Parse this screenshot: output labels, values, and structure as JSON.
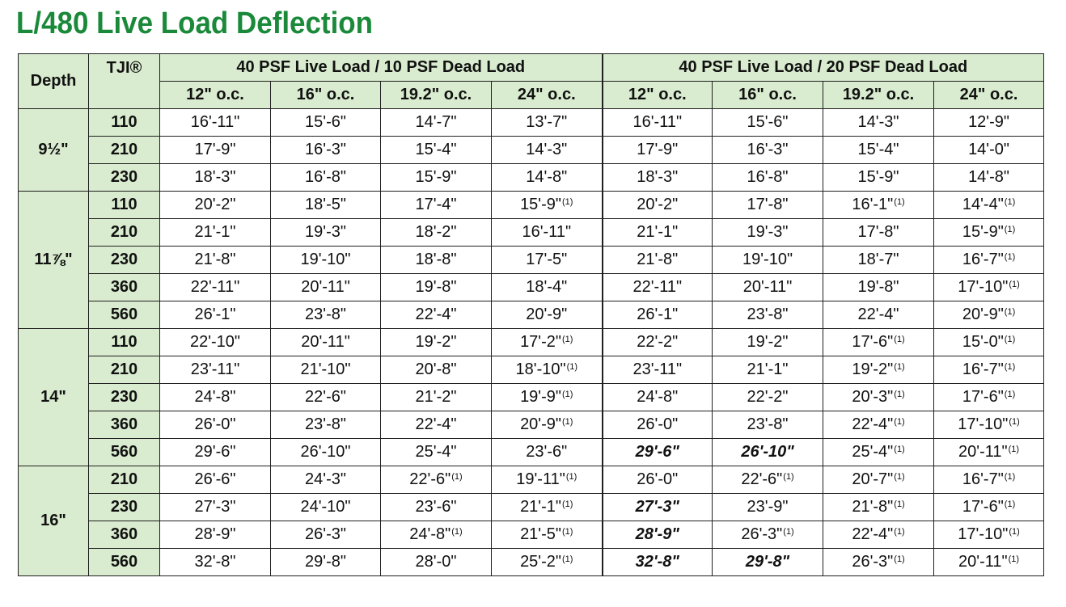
{
  "title": "L/480 Live Load Deflection",
  "header": {
    "depth": "Depth",
    "tji": "TJI®",
    "group1": "40 PSF Live Load / 10 PSF Dead Load",
    "group2": "40 PSF Live Load / 20 PSF Dead Load",
    "spacings": [
      "12\" o.c.",
      "16\" o.c.",
      "19.2\" o.c.",
      "24\" o.c.",
      "12\" o.c.",
      "16\" o.c.",
      "19.2\" o.c.",
      "24\" o.c."
    ]
  },
  "footnote_mark": "(1)",
  "groups": [
    {
      "depth": "9½\"",
      "rows": [
        {
          "tji": "110",
          "cells": [
            {
              "v": "16'-11\""
            },
            {
              "v": "15'-6\""
            },
            {
              "v": "14'-7\""
            },
            {
              "v": "13'-7\""
            },
            {
              "v": "16'-11\""
            },
            {
              "v": "15'-6\""
            },
            {
              "v": "14'-3\""
            },
            {
              "v": "12'-9\""
            }
          ]
        },
        {
          "tji": "210",
          "cells": [
            {
              "v": "17'-9\""
            },
            {
              "v": "16'-3\""
            },
            {
              "v": "15'-4\""
            },
            {
              "v": "14'-3\""
            },
            {
              "v": "17'-9\""
            },
            {
              "v": "16'-3\""
            },
            {
              "v": "15'-4\""
            },
            {
              "v": "14'-0\""
            }
          ]
        },
        {
          "tji": "230",
          "cells": [
            {
              "v": "18'-3\""
            },
            {
              "v": "16'-8\""
            },
            {
              "v": "15'-9\""
            },
            {
              "v": "14'-8\""
            },
            {
              "v": "18'-3\""
            },
            {
              "v": "16'-8\""
            },
            {
              "v": "15'-9\""
            },
            {
              "v": "14'-8\""
            }
          ]
        }
      ]
    },
    {
      "depth": "11⅞\"",
      "rows": [
        {
          "tji": "110",
          "cells": [
            {
              "v": "20'-2\""
            },
            {
              "v": "18'-5\""
            },
            {
              "v": "17'-4\""
            },
            {
              "v": "15'-9\"",
              "fn": true
            },
            {
              "v": "20'-2\""
            },
            {
              "v": "17'-8\""
            },
            {
              "v": "16'-1\"",
              "fn": true
            },
            {
              "v": "14'-4\"",
              "fn": true
            }
          ]
        },
        {
          "tji": "210",
          "cells": [
            {
              "v": "21'-1\""
            },
            {
              "v": "19'-3\""
            },
            {
              "v": "18'-2\""
            },
            {
              "v": "16'-11\""
            },
            {
              "v": "21'-1\""
            },
            {
              "v": "19'-3\""
            },
            {
              "v": "17'-8\""
            },
            {
              "v": "15'-9\"",
              "fn": true
            }
          ]
        },
        {
          "tji": "230",
          "cells": [
            {
              "v": "21'-8\""
            },
            {
              "v": "19'-10\""
            },
            {
              "v": "18'-8\""
            },
            {
              "v": "17'-5\""
            },
            {
              "v": "21'-8\""
            },
            {
              "v": "19'-10\""
            },
            {
              "v": "18'-7\""
            },
            {
              "v": "16'-7\"",
              "fn": true
            }
          ]
        },
        {
          "tji": "360",
          "cells": [
            {
              "v": "22'-11\""
            },
            {
              "v": "20'-11\""
            },
            {
              "v": "19'-8\""
            },
            {
              "v": "18'-4\""
            },
            {
              "v": "22'-11\""
            },
            {
              "v": "20'-11\""
            },
            {
              "v": "19'-8\""
            },
            {
              "v": "17'-10\"",
              "fn": true
            }
          ]
        },
        {
          "tji": "560",
          "cells": [
            {
              "v": "26'-1\""
            },
            {
              "v": "23'-8\""
            },
            {
              "v": "22'-4\""
            },
            {
              "v": "20'-9\""
            },
            {
              "v": "26'-1\""
            },
            {
              "v": "23'-8\""
            },
            {
              "v": "22'-4\""
            },
            {
              "v": "20'-9\"",
              "fn": true
            }
          ]
        }
      ]
    },
    {
      "depth": "14\"",
      "rows": [
        {
          "tji": "110",
          "cells": [
            {
              "v": "22'-10\""
            },
            {
              "v": "20'-11\""
            },
            {
              "v": "19'-2\""
            },
            {
              "v": "17'-2\"",
              "fn": true
            },
            {
              "v": "22'-2\""
            },
            {
              "v": "19'-2\""
            },
            {
              "v": "17'-6\"",
              "fn": true
            },
            {
              "v": "15'-0\"",
              "fn": true
            }
          ]
        },
        {
          "tji": "210",
          "cells": [
            {
              "v": "23'-11\""
            },
            {
              "v": "21'-10\""
            },
            {
              "v": "20'-8\""
            },
            {
              "v": "18'-10\"",
              "fn": true
            },
            {
              "v": "23'-11\""
            },
            {
              "v": "21'-1\""
            },
            {
              "v": "19'-2\"",
              "fn": true
            },
            {
              "v": "16'-7\"",
              "fn": true
            }
          ]
        },
        {
          "tji": "230",
          "cells": [
            {
              "v": "24'-8\""
            },
            {
              "v": "22'-6\""
            },
            {
              "v": "21'-2\""
            },
            {
              "v": "19'-9\"",
              "fn": true
            },
            {
              "v": "24'-8\""
            },
            {
              "v": "22'-2\""
            },
            {
              "v": "20'-3\"",
              "fn": true
            },
            {
              "v": "17'-6\"",
              "fn": true
            }
          ]
        },
        {
          "tji": "360",
          "cells": [
            {
              "v": "26'-0\""
            },
            {
              "v": "23'-8\""
            },
            {
              "v": "22'-4\""
            },
            {
              "v": "20'-9\"",
              "fn": true
            },
            {
              "v": "26'-0\""
            },
            {
              "v": "23'-8\""
            },
            {
              "v": "22'-4\"",
              "fn": true
            },
            {
              "v": "17'-10\"",
              "fn": true
            }
          ]
        },
        {
          "tji": "560",
          "cells": [
            {
              "v": "29'-6\""
            },
            {
              "v": "26'-10\""
            },
            {
              "v": "25'-4\""
            },
            {
              "v": "23'-6\""
            },
            {
              "v": "29'-6\"",
              "emph": true
            },
            {
              "v": "26'-10\"",
              "emph": true
            },
            {
              "v": "25'-4\"",
              "fn": true
            },
            {
              "v": "20'-11\"",
              "fn": true
            }
          ]
        }
      ]
    },
    {
      "depth": "16\"",
      "rows": [
        {
          "tji": "210",
          "cells": [
            {
              "v": "26'-6\""
            },
            {
              "v": "24'-3\""
            },
            {
              "v": "22'-6\"",
              "fn": true
            },
            {
              "v": "19'-11\"",
              "fn": true
            },
            {
              "v": "26'-0\""
            },
            {
              "v": "22'-6\"",
              "fn": true
            },
            {
              "v": "20'-7\"",
              "fn": true
            },
            {
              "v": "16'-7\"",
              "fn": true
            }
          ]
        },
        {
          "tji": "230",
          "cells": [
            {
              "v": "27'-3\""
            },
            {
              "v": "24'-10\""
            },
            {
              "v": "23'-6\""
            },
            {
              "v": "21'-1\"",
              "fn": true
            },
            {
              "v": "27'-3\"",
              "emph": true
            },
            {
              "v": "23'-9\""
            },
            {
              "v": "21'-8\"",
              "fn": true
            },
            {
              "v": "17'-6\"",
              "fn": true
            }
          ]
        },
        {
          "tji": "360",
          "cells": [
            {
              "v": "28'-9\""
            },
            {
              "v": "26'-3\""
            },
            {
              "v": "24'-8\"",
              "fn": true
            },
            {
              "v": "21'-5\"",
              "fn": true
            },
            {
              "v": "28'-9\"",
              "emph": true
            },
            {
              "v": "26'-3\"",
              "fn": true
            },
            {
              "v": "22'-4\"",
              "fn": true
            },
            {
              "v": "17'-10\"",
              "fn": true
            }
          ]
        },
        {
          "tji": "560",
          "cells": [
            {
              "v": "32'-8\""
            },
            {
              "v": "29'-8\""
            },
            {
              "v": "28'-0\""
            },
            {
              "v": "25'-2\"",
              "fn": true
            },
            {
              "v": "32'-8\"",
              "emph": true
            },
            {
              "v": "29'-8\"",
              "emph": true
            },
            {
              "v": "26'-3\"",
              "fn": true
            },
            {
              "v": "20'-11\"",
              "fn": true
            }
          ]
        }
      ]
    }
  ]
}
